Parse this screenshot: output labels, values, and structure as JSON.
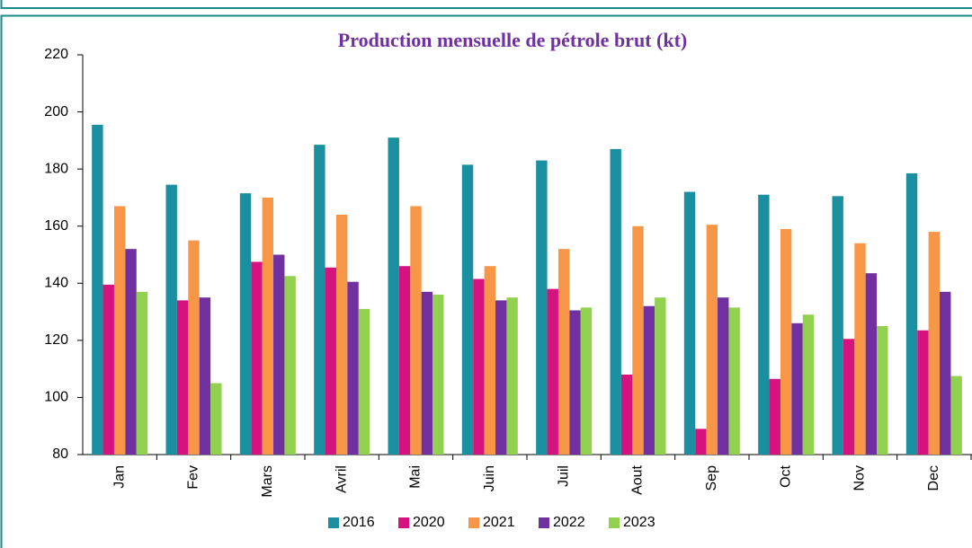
{
  "chart_data": {
    "type": "bar",
    "title": "Production mensuelle de pétrole brut (kt)",
    "categories": [
      "Jan",
      "Fev",
      "Mars",
      "Avril",
      "Mai",
      "Juin",
      "Juil",
      "Aout",
      "Sep",
      "Oct",
      "Nov",
      "Dec"
    ],
    "series": [
      {
        "name": "2016",
        "color": "#1a8fa0",
        "values": [
          195.5,
          174.5,
          171.5,
          188.5,
          191,
          181.5,
          183,
          187,
          172,
          171,
          170.5,
          178.5
        ]
      },
      {
        "name": "2020",
        "color": "#d6127e",
        "values": [
          139.5,
          134,
          147.5,
          145.5,
          146,
          141.5,
          138,
          108,
          89,
          106.5,
          120.5,
          123.5
        ]
      },
      {
        "name": "2021",
        "color": "#f79646",
        "values": [
          167,
          155,
          170,
          164,
          167,
          146,
          152,
          160,
          160.5,
          159,
          154,
          158
        ]
      },
      {
        "name": "2022",
        "color": "#7030a0",
        "values": [
          152,
          135,
          150,
          140.5,
          137,
          134,
          130.5,
          132,
          135,
          126,
          143.5,
          137
        ]
      },
      {
        "name": "2023",
        "color": "#92d050",
        "values": [
          137,
          105,
          142.5,
          131,
          136,
          135,
          131.5,
          135,
          131.5,
          129,
          125,
          107.5
        ]
      }
    ],
    "ylim": [
      80,
      220
    ],
    "yticks": [
      80,
      100,
      120,
      140,
      160,
      180,
      200,
      220
    ],
    "grid": false,
    "legend": "bottom"
  }
}
